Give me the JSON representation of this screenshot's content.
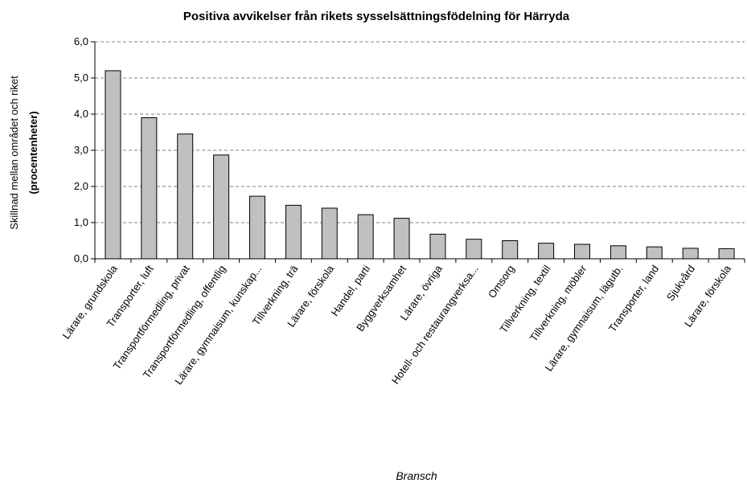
{
  "chart_data": {
    "type": "bar",
    "title": "Positiva avvikelser från rikets sysselsättningsfödelning för Härryda",
    "xlabel": "Bransch",
    "ylabel_line1": "Skillnad mellan området och riket",
    "ylabel_line2": "(procentenheter)",
    "ylim": [
      0,
      6
    ],
    "yticks": [
      "0,0",
      "1,0",
      "2,0",
      "3,0",
      "4,0",
      "5,0",
      "6,0"
    ],
    "grid": true,
    "categories": [
      "Lärare, grundskola",
      "Transporter, luft",
      "Transportförmedling, privat",
      "Transportförmedling, offentlig",
      "Lärare, gymnaisum, kunskap...",
      "Tillverkning, trä",
      "Lärare, förskola",
      "Handel, parti",
      "Byggverksamhet",
      "Lärare, övriga",
      "Hotell- och restaurangverksa...",
      "Omsorg",
      "Tillverkning, textil",
      "Tillverkning, möbler",
      "Lärare, gymnaisum, lägutb.",
      "Transporter, land",
      "Sjukvård",
      "Lärare, förskola"
    ],
    "values": [
      5.2,
      3.9,
      3.45,
      2.87,
      1.73,
      1.48,
      1.4,
      1.22,
      1.12,
      0.68,
      0.54,
      0.5,
      0.43,
      0.4,
      0.36,
      0.33,
      0.29,
      0.28
    ]
  }
}
